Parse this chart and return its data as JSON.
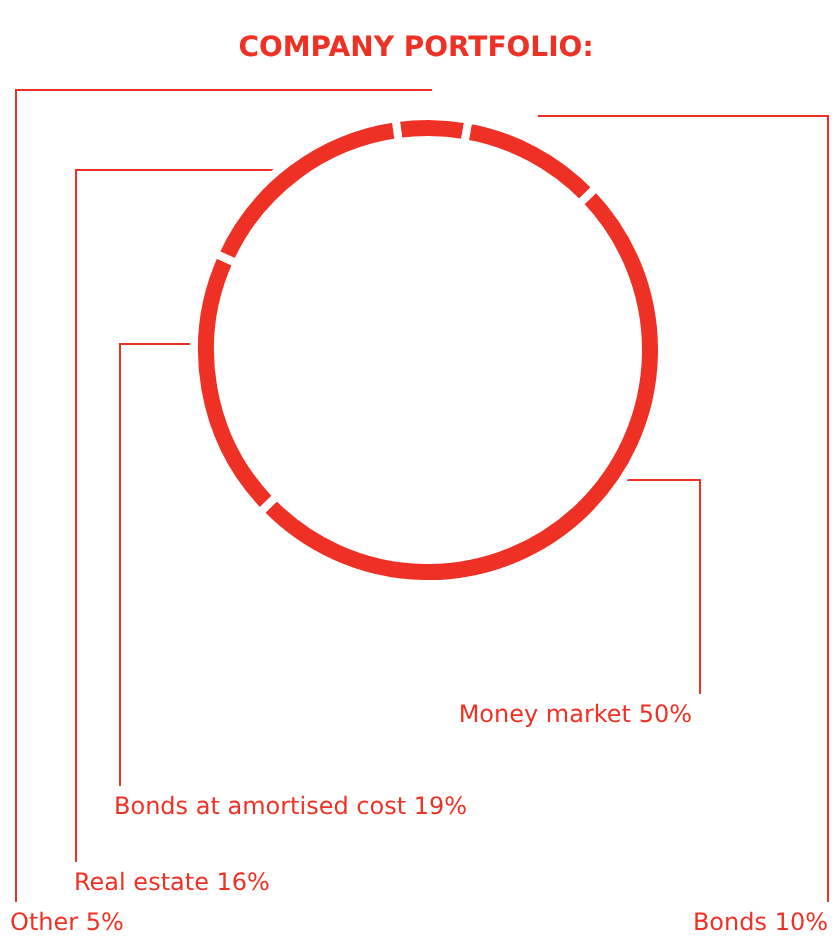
{
  "chart_data": {
    "type": "donut",
    "title": "COMPANY PORTFOLIO:",
    "categories": [
      "Other",
      "Bonds",
      "Money market",
      "Bonds at amortised cost",
      "Real estate"
    ],
    "values": [
      5,
      10,
      50,
      19,
      16
    ],
    "value_labels": [
      "5%",
      "10%",
      "50%",
      "19%",
      "16%"
    ],
    "colors": [
      "#ee3124",
      "#ee3124",
      "#ee3124",
      "#ee3124",
      "#ee3124"
    ],
    "legend": false
  }
}
